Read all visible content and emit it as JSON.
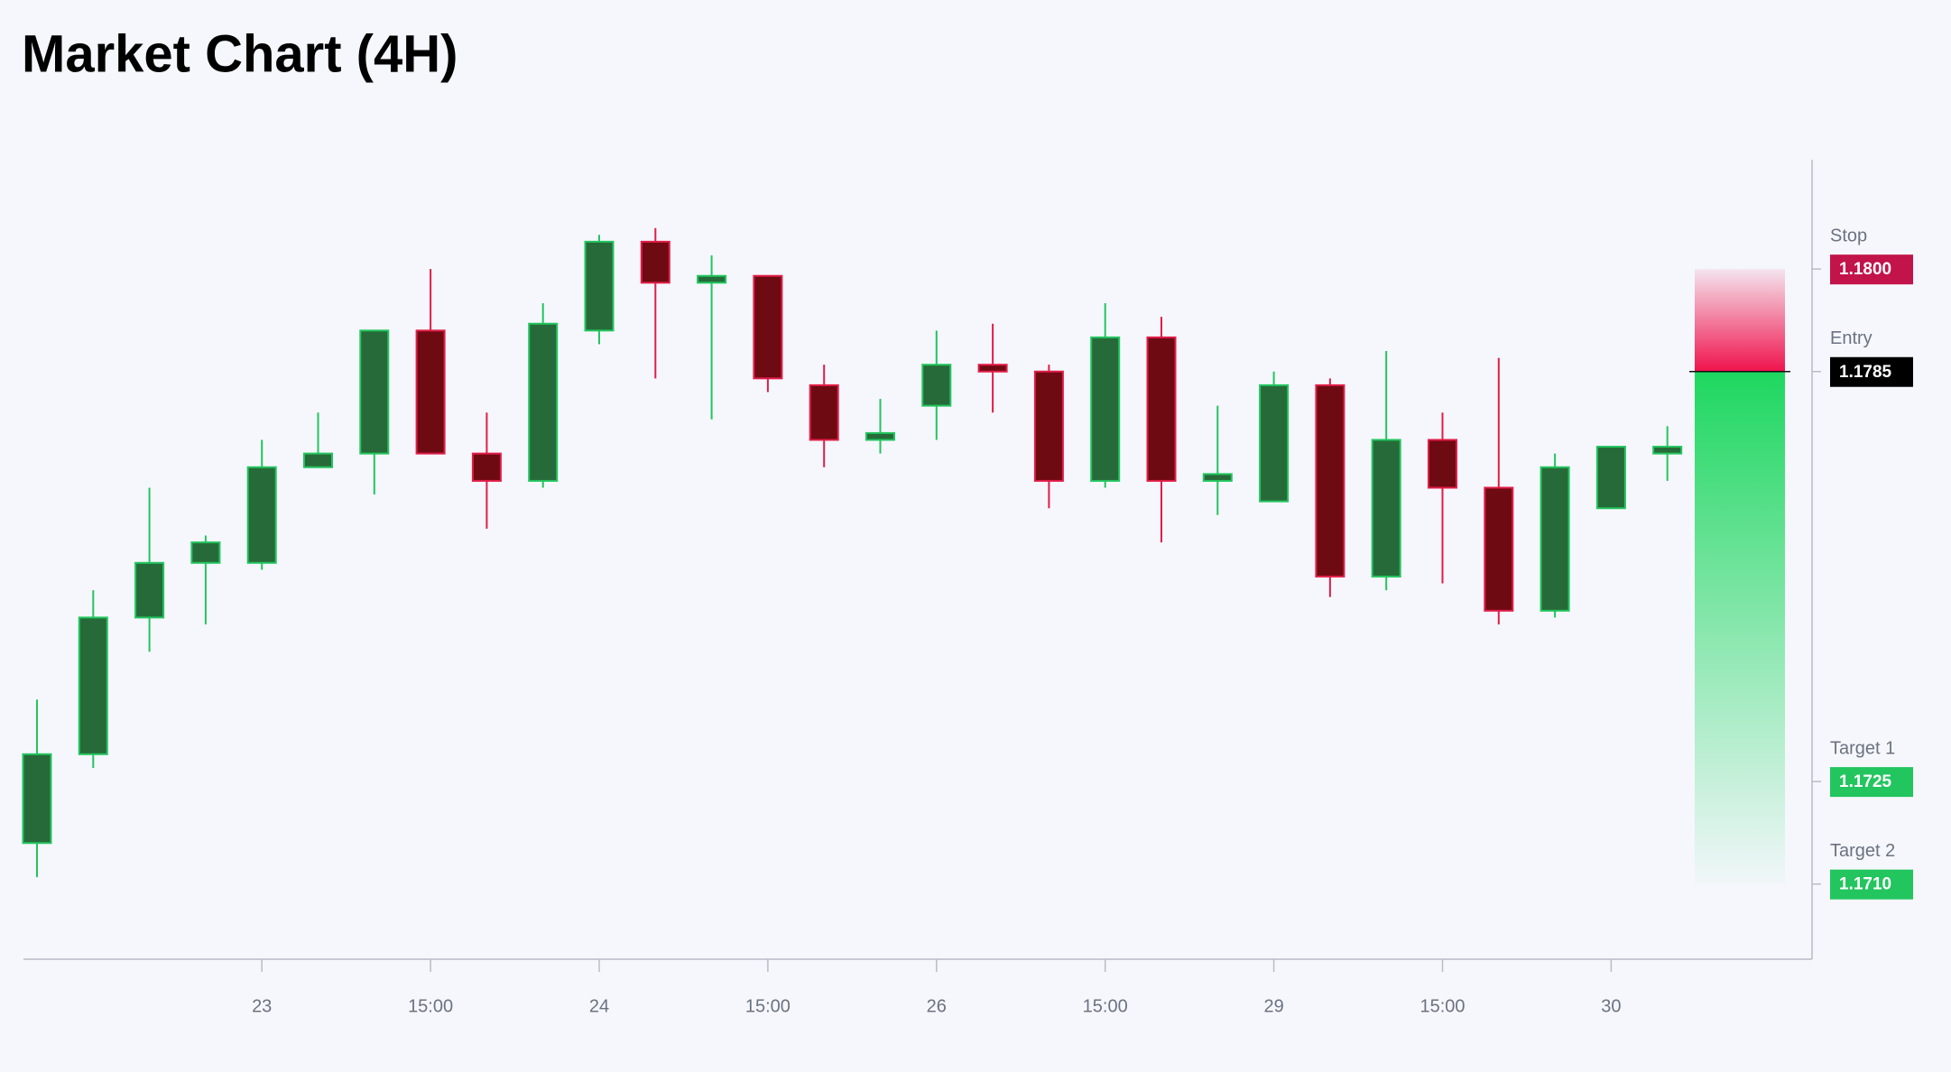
{
  "chart_data": {
    "type": "candlestick",
    "title": "Market Chart (4H)",
    "categories": [
      null,
      null,
      null,
      null,
      "23",
      null,
      null,
      "15:00",
      null,
      null,
      "24",
      null,
      null,
      "15:00",
      null,
      null,
      "26",
      null,
      null,
      "15:00",
      null,
      null,
      "29",
      null,
      null,
      "15:00",
      null,
      null,
      "30",
      null
    ],
    "open": [
      1.1716,
      1.1729,
      1.1749,
      1.1757,
      1.1757,
      1.1771,
      1.1773,
      1.1791,
      1.1773,
      1.1769,
      1.1791,
      1.1804,
      1.1798,
      1.1799,
      1.1783,
      1.1775,
      1.178,
      1.1786,
      1.1785,
      1.1769,
      1.179,
      1.1769,
      1.1766,
      1.1783,
      1.1755,
      1.1775,
      1.1768,
      1.175,
      1.1765,
      1.1773
    ],
    "high": [
      1.1737,
      1.1753,
      1.1768,
      1.1761,
      1.1775,
      1.1779,
      1.1791,
      1.18,
      1.1779,
      1.1795,
      1.1805,
      1.1806,
      1.1802,
      1.1799,
      1.1786,
      1.1781,
      1.1791,
      1.1792,
      1.1786,
      1.1795,
      1.1793,
      1.178,
      1.1785,
      1.1784,
      1.1788,
      1.1779,
      1.1787,
      1.1773,
      1.1774,
      1.1777
    ],
    "low": [
      1.1711,
      1.1727,
      1.1744,
      1.1748,
      1.1756,
      1.1771,
      1.1767,
      1.1773,
      1.1762,
      1.1768,
      1.1789,
      1.1784,
      1.1778,
      1.1782,
      1.1771,
      1.1773,
      1.1775,
      1.1779,
      1.1765,
      1.1768,
      1.176,
      1.1764,
      1.1766,
      1.1752,
      1.1753,
      1.1754,
      1.1748,
      1.1749,
      1.1765,
      1.1769
    ],
    "close": [
      1.1729,
      1.1749,
      1.1757,
      1.176,
      1.1771,
      1.1773,
      1.1791,
      1.1773,
      1.1769,
      1.1792,
      1.1804,
      1.1798,
      1.1799,
      1.1784,
      1.1775,
      1.1776,
      1.1786,
      1.1785,
      1.1769,
      1.179,
      1.1769,
      1.177,
      1.1783,
      1.1755,
      1.1775,
      1.1768,
      1.175,
      1.1771,
      1.1774,
      1.1774
    ],
    "up_color": "#276a39",
    "up_border": "#22c55e",
    "down_color": "#6e0a12",
    "down_border": "#e11d48",
    "ylim": [
      1.1699,
      1.1816
    ],
    "levels": [
      {
        "name": "Stop",
        "value": 1.18,
        "label": "1.1800",
        "color": "#c2134a"
      },
      {
        "name": "Entry",
        "value": 1.1785,
        "label": "1.1785",
        "color": "#000000"
      },
      {
        "name": "Target 1",
        "value": 1.1725,
        "label": "1.1725",
        "color": "#22c55e"
      },
      {
        "name": "Target 2",
        "value": 1.171,
        "label": "1.1710",
        "color": "#22c55e"
      }
    ]
  }
}
